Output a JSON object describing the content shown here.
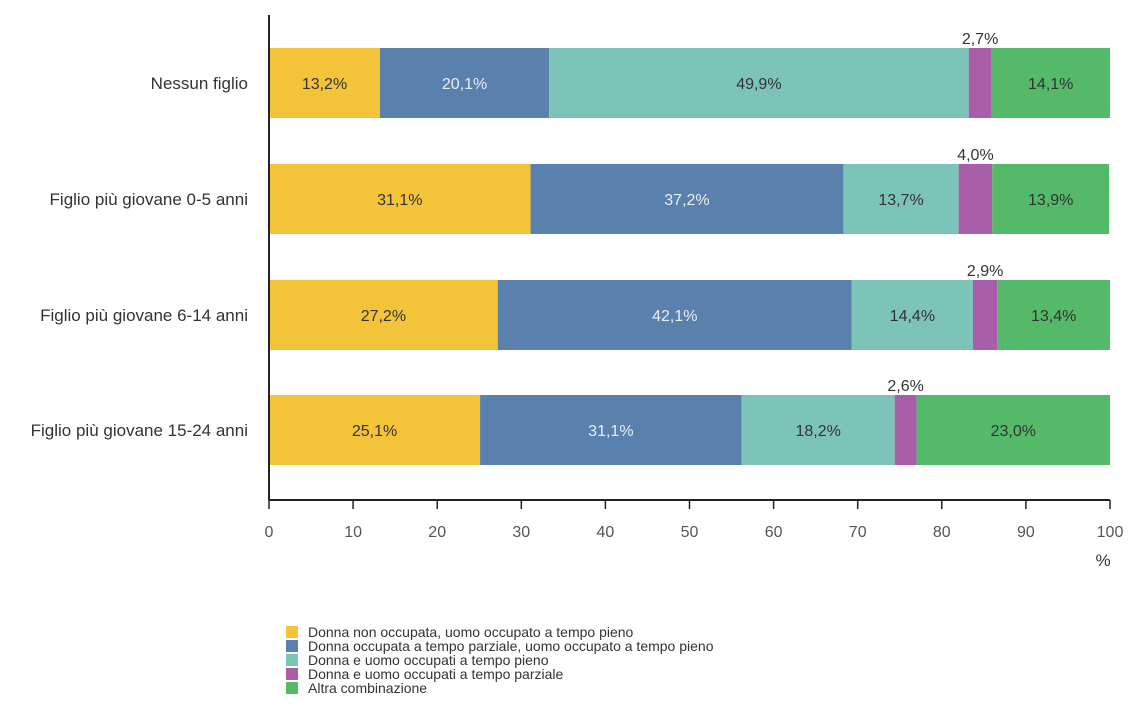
{
  "chart_data": {
    "type": "bar",
    "orientation": "horizontal",
    "stacked": true,
    "categories": [
      "Nessun figlio",
      "Figlio più giovane 0-5 anni",
      "Figlio più giovane 6-14 anni",
      "Figlio più giovane 15-24 anni"
    ],
    "series": [
      {
        "name": "Donna non occupata, uomo occupato a tempo pieno",
        "color": "#f3c33a",
        "values": [
          13.2,
          31.1,
          27.2,
          25.1
        ],
        "labels": [
          "13,2%",
          "31,1%",
          "27,2%",
          "25,1%"
        ]
      },
      {
        "name": "Donna occupata a tempo parziale, uomo occupato a tempo pieno",
        "color": "#5a80ad",
        "values": [
          20.1,
          37.2,
          42.1,
          31.1
        ],
        "labels": [
          "20,1%",
          "37,2%",
          "42,1%",
          "31,1%"
        ]
      },
      {
        "name": "Donna e uomo occupati a tempo pieno",
        "color": "#7cc4b8",
        "values": [
          49.9,
          13.7,
          14.4,
          18.2
        ],
        "labels": [
          "49,9%",
          "13,7%",
          "14,4%",
          "18,2%"
        ]
      },
      {
        "name": "Donna e uomo occupati a tempo parziale",
        "color": "#a85ea9",
        "values": [
          2.7,
          4.0,
          2.9,
          2.6
        ],
        "labels": [
          "2,7%",
          "4,0%",
          "2,9%",
          "2,6%"
        ]
      },
      {
        "name": "Altra combinazione",
        "color": "#55b96a",
        "values": [
          14.1,
          13.9,
          13.4,
          23.0
        ],
        "labels": [
          "14,1%",
          "13,9%",
          "13,4%",
          "23,0%"
        ]
      }
    ],
    "xlabel": "%",
    "xlim": [
      0,
      100
    ],
    "xticks": [
      0,
      10,
      20,
      30,
      40,
      50,
      60,
      70,
      80,
      90,
      100
    ],
    "grid": false,
    "legend_position": "bottom"
  }
}
